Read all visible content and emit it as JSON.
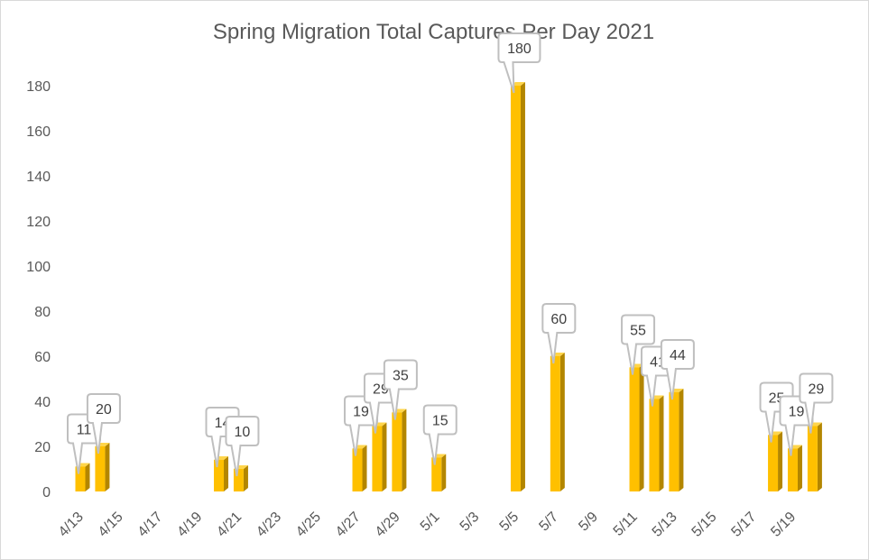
{
  "chart_data": {
    "type": "bar",
    "title": "Spring Migration Total Captures Per Day 2021",
    "xlabel": "",
    "ylabel": "",
    "ylim": [
      0,
      190
    ],
    "yticks": [
      0,
      20,
      40,
      60,
      80,
      100,
      120,
      140,
      160,
      180
    ],
    "xtick_labels": [
      "4/13",
      "4/15",
      "4/17",
      "4/19",
      "4/21",
      "4/23",
      "4/25",
      "4/27",
      "4/29",
      "5/1",
      "5/3",
      "5/5",
      "5/7",
      "5/9",
      "5/11",
      "5/13",
      "5/15",
      "5/17",
      "5/19"
    ],
    "categories": [
      "4/13",
      "4/14",
      "4/15",
      "4/16",
      "4/17",
      "4/18",
      "4/19",
      "4/20",
      "4/21",
      "4/22",
      "4/23",
      "4/24",
      "4/25",
      "4/26",
      "4/27",
      "4/28",
      "4/29",
      "4/30",
      "5/1",
      "5/2",
      "5/3",
      "5/4",
      "5/5",
      "5/6",
      "5/7",
      "5/8",
      "5/9",
      "5/10",
      "5/11",
      "5/12",
      "5/13",
      "5/14",
      "5/15",
      "5/16",
      "5/17",
      "5/18",
      "5/19",
      "5/20"
    ],
    "values": [
      11,
      20,
      null,
      null,
      null,
      null,
      null,
      14,
      10,
      null,
      null,
      null,
      null,
      null,
      19,
      29,
      35,
      null,
      15,
      null,
      null,
      null,
      180,
      null,
      60,
      null,
      null,
      null,
      55,
      41,
      44,
      null,
      null,
      null,
      null,
      25,
      19,
      29
    ],
    "bar_color": "#FFC000",
    "bar_side_color": "#B38600",
    "grid": false,
    "legend": "none"
  }
}
